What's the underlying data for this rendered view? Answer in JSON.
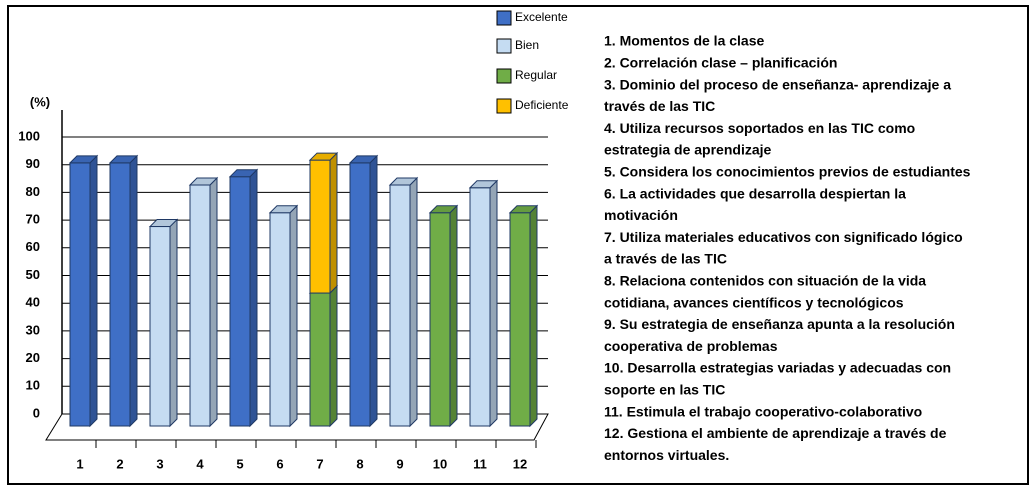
{
  "chart_data": {
    "type": "bar3d_stacked",
    "y_label": "(%)",
    "categories": [
      "1",
      "2",
      "3",
      "4",
      "5",
      "6",
      "7",
      "8",
      "9",
      "10",
      "11",
      "12"
    ],
    "series": [
      {
        "name": "Excelente",
        "color": "#3f6fc6",
        "values": [
          95,
          95,
          null,
          null,
          90,
          null,
          null,
          95,
          null,
          null,
          null,
          null
        ]
      },
      {
        "name": "Bien",
        "color": "#c5dcf2",
        "values": [
          null,
          null,
          72,
          87,
          null,
          77,
          null,
          null,
          87,
          null,
          86,
          null
        ]
      },
      {
        "name": "Regular",
        "color": "#70ad47",
        "values": [
          null,
          null,
          null,
          null,
          null,
          null,
          48,
          null,
          null,
          77,
          null,
          77
        ]
      },
      {
        "name": "Deficiente",
        "color": "#ffc000",
        "values": [
          null,
          null,
          null,
          null,
          null,
          null,
          48,
          null,
          null,
          null,
          null,
          null
        ]
      }
    ],
    "ylim": [
      0,
      100
    ],
    "yticks": [
      0,
      10,
      20,
      30,
      40,
      50,
      60,
      70,
      80,
      90,
      100
    ],
    "grid": true,
    "notes": [
      "1. Momentos de la clase",
      "2. Correlación clase – planificación",
      "3. Dominio del proceso de enseñanza- aprendizaje a",
      "través de las TIC",
      "4. Utiliza recursos soportados en las TIC como",
      "estrategia de aprendizaje",
      "5. Considera los conocimientos previos de estudiantes",
      "6. La actividades que desarrolla despiertan la",
      "motivación",
      "7. Utiliza materiales educativos con significado lógico",
      "a través de las TIC",
      "8. Relaciona contenidos con situación de la vida",
      "cotidiana, avances científicos y tecnológicos",
      "9. Su estrategia de enseñanza apunta a la resolución",
      "cooperativa de problemas",
      "10. Desarrolla estrategias variadas y adecuadas con",
      "soporte en las TIC",
      "11. Estimula el trabajo cooperativo-colaborativo",
      "12. Gestiona el ambiente de aprendizaje a través de",
      "entornos virtuales."
    ]
  }
}
